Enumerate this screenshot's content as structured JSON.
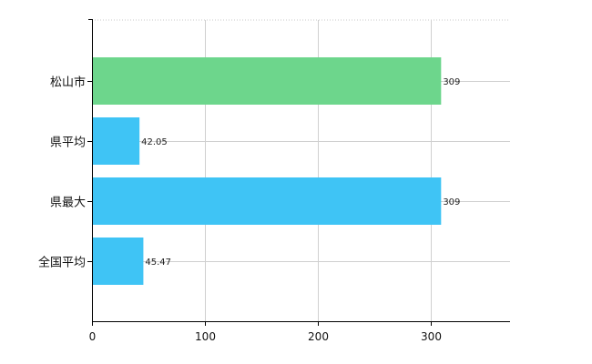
{
  "chart_data": {
    "type": "bar",
    "orientation": "horizontal",
    "categories": [
      "松山市",
      "県平均",
      "県最大",
      "全国平均"
    ],
    "values": [
      309,
      42.05,
      309,
      45.47
    ],
    "value_labels": [
      "309",
      "42.05",
      "309",
      "45.47"
    ],
    "bar_colors": [
      "#6dd68c",
      "#3fc4f5",
      "#3fc4f5",
      "#3fc4f5"
    ],
    "xlim": [
      0,
      370
    ],
    "x_ticks": [
      0,
      100,
      200,
      300
    ],
    "grid": true,
    "legend": "none"
  }
}
